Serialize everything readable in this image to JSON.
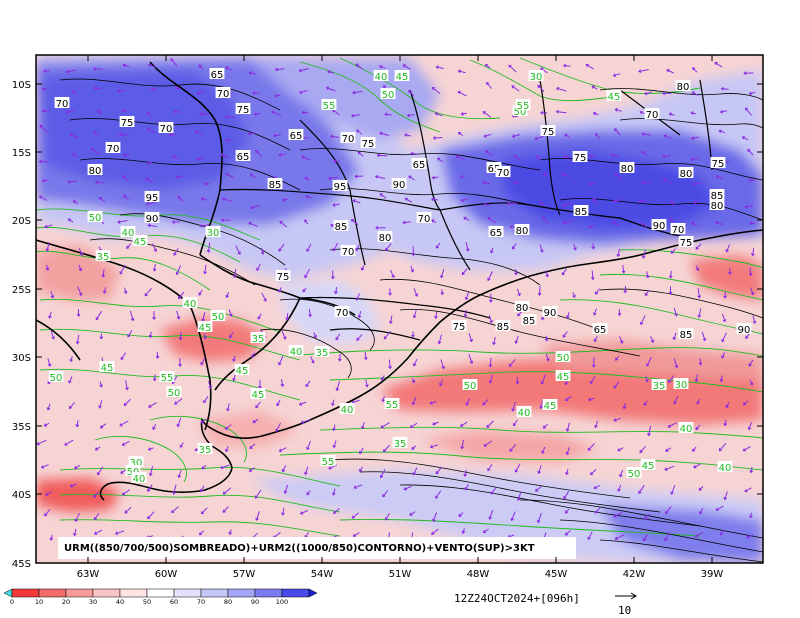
{
  "map": {
    "y_ticks": [
      "10S",
      "15S",
      "20S",
      "25S",
      "30S",
      "35S",
      "40S",
      "45S"
    ],
    "x_ticks": [
      "63W",
      "60W",
      "57W",
      "54W",
      "51W",
      "48W",
      "45W",
      "42W",
      "39W"
    ],
    "caption": "URM((850/700/500)SOMBREADO)+URM2((1000/850)CONTORNO)+VENTO(SUP)>3KT",
    "timestamp": "12Z24OCT2024+[096h]",
    "vector_ref": "10",
    "colors": {
      "frame": "#000000",
      "contour_green": "#22bb22",
      "wind_vector": "#8a2be2",
      "low_humidity": "#f05050",
      "high_humidity": "#4a4af0"
    }
  },
  "colorbar": {
    "labels": [
      "0",
      "10",
      "20",
      "30",
      "40",
      "50",
      "60",
      "70",
      "80",
      "90",
      "100"
    ],
    "colors": [
      "#f23a3a",
      "#f56a6a",
      "#f89a9a",
      "#fbc4c4",
      "#fde4e4",
      "#ffffff",
      "#e2e2fb",
      "#c5c5f8",
      "#a5a5f5",
      "#7b7bf0",
      "#4a4aea"
    ]
  },
  "contour_labels": {
    "black": [
      "65",
      "70",
      "70",
      "75",
      "75",
      "70",
      "70",
      "65",
      "65",
      "70",
      "75",
      "80",
      "85",
      "95",
      "90",
      "95",
      "90",
      "85",
      "80",
      "70",
      "75",
      "70",
      "65",
      "80",
      "65",
      "70",
      "75",
      "80",
      "85",
      "90",
      "80",
      "75",
      "70",
      "75",
      "80",
      "85",
      "80",
      "70",
      "75",
      "65",
      "70",
      "75",
      "85",
      "80",
      "85",
      "90",
      "65",
      "85",
      "90"
    ],
    "green": [
      "40",
      "45",
      "55",
      "50",
      "30",
      "45",
      "50",
      "55",
      "50",
      "40",
      "45",
      "30",
      "35",
      "40",
      "45",
      "50",
      "35",
      "40",
      "35",
      "45",
      "50",
      "45",
      "55",
      "50",
      "45",
      "40",
      "55",
      "50",
      "40",
      "45",
      "50",
      "45",
      "35",
      "30",
      "40",
      "35",
      "55",
      "50",
      "45",
      "40",
      "35",
      "30",
      "50",
      "40"
    ]
  }
}
